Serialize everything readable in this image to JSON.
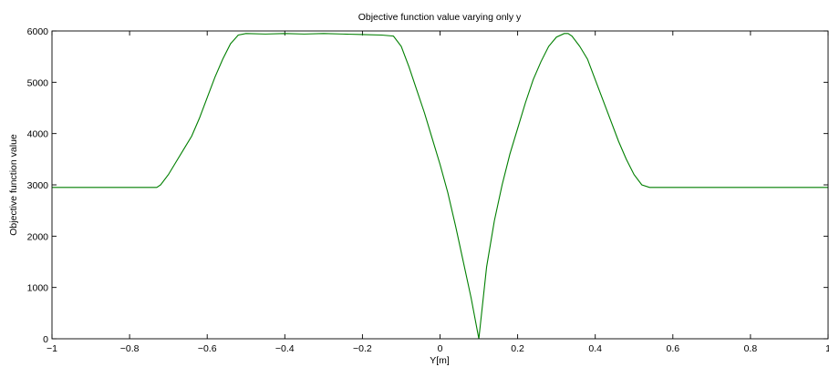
{
  "chart_data": {
    "type": "line",
    "title": "Objective function value varying only y",
    "xlabel": "Y[m]",
    "ylabel": "Objective function value",
    "xlim": [
      -1,
      1
    ],
    "ylim": [
      0,
      6000
    ],
    "xticks": [
      -1,
      -0.8,
      -0.6,
      -0.4,
      -0.2,
      0,
      0.2,
      0.4,
      0.6,
      0.8,
      1
    ],
    "xtick_labels": [
      "−1",
      "−0.8",
      "−0.6",
      "−0.4",
      "−0.2",
      "0",
      "0.2",
      "0.4",
      "0.6",
      "0.8",
      "1"
    ],
    "yticks": [
      0,
      1000,
      2000,
      3000,
      4000,
      5000,
      6000
    ],
    "ytick_labels": [
      "0",
      "1000",
      "2000",
      "3000",
      "4000",
      "5000",
      "6000"
    ],
    "grid": false,
    "line_color": "#007f00",
    "series": [
      {
        "x": [
          -1,
          -0.9,
          -0.8,
          -0.73,
          -0.72,
          -0.7,
          -0.68,
          -0.66,
          -0.64,
          -0.62,
          -0.6,
          -0.58,
          -0.56,
          -0.54,
          -0.52,
          -0.5,
          -0.45,
          -0.4,
          -0.35,
          -0.3,
          -0.25,
          -0.2,
          -0.15,
          -0.12,
          -0.1,
          -0.08,
          -0.06,
          -0.04,
          -0.02,
          0,
          0.02,
          0.04,
          0.06,
          0.08,
          0.1,
          0.12,
          0.14,
          0.16,
          0.18,
          0.2,
          0.22,
          0.24,
          0.26,
          0.28,
          0.3,
          0.32,
          0.33,
          0.34,
          0.36,
          0.38,
          0.4,
          0.42,
          0.44,
          0.46,
          0.48,
          0.5,
          0.52,
          0.54,
          0.55,
          0.6,
          0.7,
          0.8,
          0.9,
          1
        ],
        "y": [
          2950,
          2950,
          2950,
          2950,
          3000,
          3200,
          3450,
          3700,
          3950,
          4300,
          4700,
          5100,
          5450,
          5750,
          5920,
          5950,
          5940,
          5950,
          5940,
          5950,
          5940,
          5930,
          5920,
          5900,
          5700,
          5300,
          4850,
          4400,
          3900,
          3400,
          2850,
          2200,
          1500,
          800,
          0,
          1400,
          2300,
          3000,
          3600,
          4100,
          4600,
          5050,
          5400,
          5700,
          5880,
          5950,
          5950,
          5900,
          5700,
          5450,
          5050,
          4650,
          4250,
          3850,
          3500,
          3200,
          3000,
          2950,
          2950,
          2950,
          2950,
          2950,
          2950,
          2950
        ]
      }
    ]
  }
}
